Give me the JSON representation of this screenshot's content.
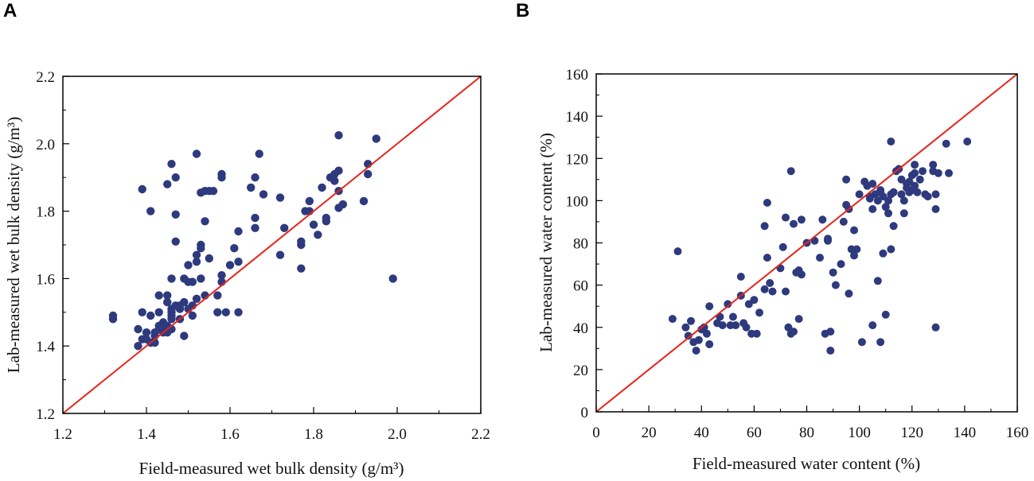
{
  "panels": {
    "a_label": "A",
    "b_label": "B"
  },
  "colors": {
    "point": "#2e3a7d",
    "line": "#e8241c",
    "axis": "#000000"
  },
  "chart_data": [
    {
      "type": "scatter",
      "panel": "A",
      "xlabel": "Field-measured wet bulk density (g/m³)",
      "ylabel": "Lab-measured wet bulk density (g/m³)",
      "xlim": [
        1.2,
        2.2
      ],
      "ylim": [
        1.2,
        2.2
      ],
      "xticks": [
        "1.2",
        "1.4",
        "1.6",
        "1.8",
        "2.0",
        "2.2"
      ],
      "yticks": [
        "1.2",
        "1.4",
        "1.6",
        "1.8",
        "2.0",
        "2.2"
      ],
      "reference_line": "y = x",
      "points": [
        [
          1.32,
          1.48
        ],
        [
          1.32,
          1.49
        ],
        [
          1.38,
          1.45
        ],
        [
          1.38,
          1.4
        ],
        [
          1.39,
          1.42
        ],
        [
          1.39,
          1.5
        ],
        [
          1.39,
          1.865
        ],
        [
          1.4,
          1.44
        ],
        [
          1.4,
          1.42
        ],
        [
          1.41,
          1.41
        ],
        [
          1.41,
          1.49
        ],
        [
          1.41,
          1.8
        ],
        [
          1.42,
          1.43
        ],
        [
          1.42,
          1.41
        ],
        [
          1.42,
          1.44
        ],
        [
          1.43,
          1.45
        ],
        [
          1.43,
          1.46
        ],
        [
          1.43,
          1.5
        ],
        [
          1.43,
          1.55
        ],
        [
          1.44,
          1.45
        ],
        [
          1.44,
          1.44
        ],
        [
          1.44,
          1.47
        ],
        [
          1.44,
          1.46
        ],
        [
          1.45,
          1.46
        ],
        [
          1.45,
          1.55
        ],
        [
          1.45,
          1.53
        ],
        [
          1.45,
          1.88
        ],
        [
          1.45,
          1.44
        ],
        [
          1.46,
          1.45
        ],
        [
          1.46,
          1.48
        ],
        [
          1.46,
          1.49
        ],
        [
          1.46,
          1.5
        ],
        [
          1.46,
          1.51
        ],
        [
          1.46,
          1.6
        ],
        [
          1.46,
          1.94
        ],
        [
          1.47,
          1.52
        ],
        [
          1.47,
          1.71
        ],
        [
          1.47,
          1.79
        ],
        [
          1.47,
          1.9
        ],
        [
          1.48,
          1.48
        ],
        [
          1.48,
          1.52
        ],
        [
          1.48,
          1.51
        ],
        [
          1.49,
          1.53
        ],
        [
          1.49,
          1.6
        ],
        [
          1.49,
          1.43
        ],
        [
          1.5,
          1.51
        ],
        [
          1.5,
          1.59
        ],
        [
          1.5,
          1.64
        ],
        [
          1.51,
          1.59
        ],
        [
          1.51,
          1.49
        ],
        [
          1.51,
          1.52
        ],
        [
          1.52,
          1.97
        ],
        [
          1.52,
          1.54
        ],
        [
          1.52,
          1.67
        ],
        [
          1.52,
          1.65
        ],
        [
          1.53,
          1.6
        ],
        [
          1.53,
          1.69
        ],
        [
          1.53,
          1.7
        ],
        [
          1.53,
          1.855
        ],
        [
          1.54,
          1.77
        ],
        [
          1.54,
          1.55
        ],
        [
          1.54,
          1.86
        ],
        [
          1.55,
          1.66
        ],
        [
          1.55,
          1.86
        ],
        [
          1.56,
          1.86
        ],
        [
          1.57,
          1.5
        ],
        [
          1.57,
          1.55
        ],
        [
          1.58,
          1.59
        ],
        [
          1.58,
          1.61
        ],
        [
          1.58,
          1.9
        ],
        [
          1.58,
          1.91
        ],
        [
          1.59,
          1.5
        ],
        [
          1.6,
          1.64
        ],
        [
          1.61,
          1.69
        ],
        [
          1.62,
          1.65
        ],
        [
          1.62,
          1.74
        ],
        [
          1.62,
          1.5
        ],
        [
          1.65,
          1.87
        ],
        [
          1.66,
          1.75
        ],
        [
          1.66,
          1.78
        ],
        [
          1.66,
          1.9
        ],
        [
          1.67,
          1.97
        ],
        [
          1.68,
          1.85
        ],
        [
          1.72,
          1.67
        ],
        [
          1.72,
          1.84
        ],
        [
          1.73,
          1.75
        ],
        [
          1.77,
          1.63
        ],
        [
          1.77,
          1.7
        ],
        [
          1.77,
          1.71
        ],
        [
          1.78,
          1.8
        ],
        [
          1.79,
          1.83
        ],
        [
          1.79,
          1.8
        ],
        [
          1.8,
          1.76
        ],
        [
          1.81,
          1.73
        ],
        [
          1.82,
          1.87
        ],
        [
          1.83,
          1.77
        ],
        [
          1.83,
          1.78
        ],
        [
          1.84,
          1.9
        ],
        [
          1.85,
          1.89
        ],
        [
          1.85,
          1.91
        ],
        [
          1.86,
          1.92
        ],
        [
          1.86,
          1.86
        ],
        [
          1.86,
          1.81
        ],
        [
          1.86,
          2.025
        ],
        [
          1.87,
          1.82
        ],
        [
          1.92,
          1.83
        ],
        [
          1.93,
          1.94
        ],
        [
          1.93,
          1.91
        ],
        [
          1.95,
          2.015
        ],
        [
          1.99,
          1.6
        ]
      ]
    },
    {
      "type": "scatter",
      "panel": "B",
      "xlabel": "Field-measured water content (%)",
      "ylabel": "Lab-measured water content (%)",
      "xlim": [
        0,
        160
      ],
      "ylim": [
        0,
        160
      ],
      "xticks": [
        "0",
        "20",
        "40",
        "60",
        "80",
        "100",
        "120",
        "140",
        "160"
      ],
      "yticks": [
        "0",
        "20",
        "40",
        "60",
        "80",
        "100",
        "120",
        "140",
        "160"
      ],
      "reference_line": "y = x",
      "points": [
        [
          29,
          44
        ],
        [
          31,
          76
        ],
        [
          34,
          40
        ],
        [
          35,
          36
        ],
        [
          36,
          43
        ],
        [
          37,
          33
        ],
        [
          38,
          29
        ],
        [
          39,
          34
        ],
        [
          40,
          39
        ],
        [
          41,
          40
        ],
        [
          42,
          37
        ],
        [
          43,
          32
        ],
        [
          43,
          50
        ],
        [
          46,
          42
        ],
        [
          47,
          45
        ],
        [
          48,
          41
        ],
        [
          50,
          51
        ],
        [
          51,
          41
        ],
        [
          52,
          45
        ],
        [
          53,
          41
        ],
        [
          55,
          55
        ],
        [
          55,
          64
        ],
        [
          56,
          42
        ],
        [
          57,
          40
        ],
        [
          58,
          51
        ],
        [
          59,
          37
        ],
        [
          60,
          53
        ],
        [
          61,
          37
        ],
        [
          62,
          47
        ],
        [
          64,
          58
        ],
        [
          64,
          88
        ],
        [
          65,
          99
        ],
        [
          65,
          73
        ],
        [
          66,
          61
        ],
        [
          67,
          57
        ],
        [
          70,
          68
        ],
        [
          71,
          78
        ],
        [
          72,
          92
        ],
        [
          72,
          57
        ],
        [
          73,
          40
        ],
        [
          74,
          114
        ],
        [
          74,
          37
        ],
        [
          75,
          38
        ],
        [
          75,
          89
        ],
        [
          76,
          66
        ],
        [
          77,
          67
        ],
        [
          77,
          44
        ],
        [
          78,
          91
        ],
        [
          78,
          65
        ],
        [
          80,
          80
        ],
        [
          83,
          81
        ],
        [
          85,
          73
        ],
        [
          86,
          91
        ],
        [
          87,
          37
        ],
        [
          88,
          82
        ],
        [
          88,
          81
        ],
        [
          89,
          29
        ],
        [
          89,
          38
        ],
        [
          90,
          66
        ],
        [
          91,
          60
        ],
        [
          93,
          70
        ],
        [
          94,
          90
        ],
        [
          95,
          110
        ],
        [
          95,
          98
        ],
        [
          96,
          56
        ],
        [
          96,
          96
        ],
        [
          97,
          77
        ],
        [
          98,
          86
        ],
        [
          98,
          74
        ],
        [
          99,
          77
        ],
        [
          100,
          103
        ],
        [
          101,
          33
        ],
        [
          102,
          109
        ],
        [
          103,
          107
        ],
        [
          104,
          101
        ],
        [
          104,
          102
        ],
        [
          105,
          41
        ],
        [
          105,
          96
        ],
        [
          105,
          108
        ],
        [
          106,
          103
        ],
        [
          107,
          100
        ],
        [
          107,
          62
        ],
        [
          108,
          33
        ],
        [
          108,
          105
        ],
        [
          108,
          104
        ],
        [
          109,
          75
        ],
        [
          109,
          102
        ],
        [
          110,
          46
        ],
        [
          110,
          97
        ],
        [
          111,
          94
        ],
        [
          111,
          100
        ],
        [
          112,
          77
        ],
        [
          112,
          103
        ],
        [
          112,
          128
        ],
        [
          113,
          88
        ],
        [
          113,
          104
        ],
        [
          114,
          114
        ],
        [
          115,
          115
        ],
        [
          116,
          103
        ],
        [
          116,
          110
        ],
        [
          117,
          100
        ],
        [
          117,
          94
        ],
        [
          118,
          108
        ],
        [
          118,
          106
        ],
        [
          119,
          104
        ],
        [
          119,
          109
        ],
        [
          120,
          105
        ],
        [
          120,
          112
        ],
        [
          121,
          107
        ],
        [
          121,
          113
        ],
        [
          121,
          117
        ],
        [
          122,
          104
        ],
        [
          123,
          110
        ],
        [
          124,
          114
        ],
        [
          125,
          103
        ],
        [
          126,
          102
        ],
        [
          128,
          117
        ],
        [
          128,
          114
        ],
        [
          129,
          40
        ],
        [
          129,
          96
        ],
        [
          129,
          103
        ],
        [
          130,
          113
        ],
        [
          133,
          127
        ],
        [
          134,
          113
        ],
        [
          141,
          128
        ]
      ]
    }
  ]
}
